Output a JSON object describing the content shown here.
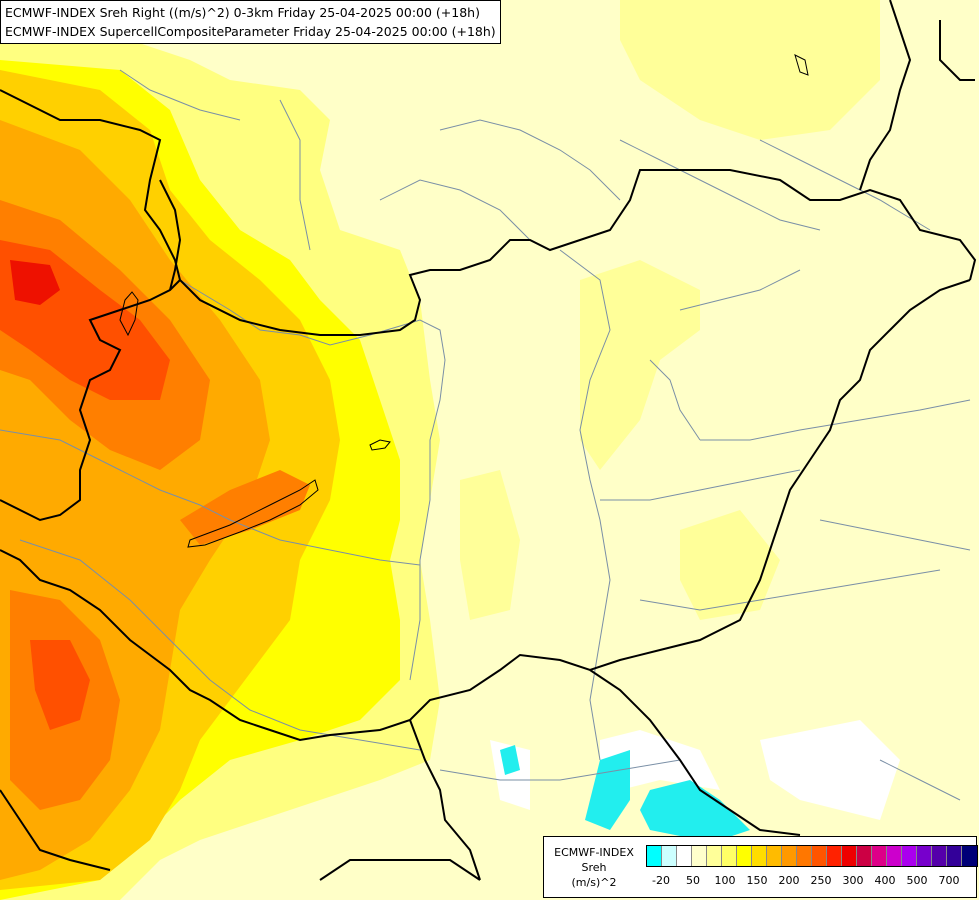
{
  "header": {
    "line1": "ECMWF-INDEX Sreh Right ((m/s)^2) 0-3km Friday 25-04-2025 00:00 (+18h)",
    "line2": "ECMWF-INDEX SupercellCompositeParameter Friday 25-04-2025 00:00 (+18h)"
  },
  "legend": {
    "model": "ECMWF-INDEX",
    "variable": "Sreh",
    "unit": "(m/s)^2",
    "colors": [
      "#00ffff",
      "#ccffff",
      "#ffffff",
      "#ffffcc",
      "#ffff99",
      "#ffff66",
      "#ffff00",
      "#ffdd00",
      "#ffbb00",
      "#ff9900",
      "#ff7700",
      "#ff5500",
      "#ff2200",
      "#ee0000",
      "#cc0044",
      "#dd0088",
      "#cc00cc",
      "#aa00ee",
      "#7700cc",
      "#5500aa",
      "#330099",
      "#000077"
    ],
    "tick_labels": [
      "-20",
      "50",
      "100",
      "150",
      "200",
      "250",
      "300",
      "400",
      "500",
      "700"
    ]
  },
  "map": {
    "palette": {
      "country_border": "#000000",
      "river": "#7a8fa6"
    }
  }
}
